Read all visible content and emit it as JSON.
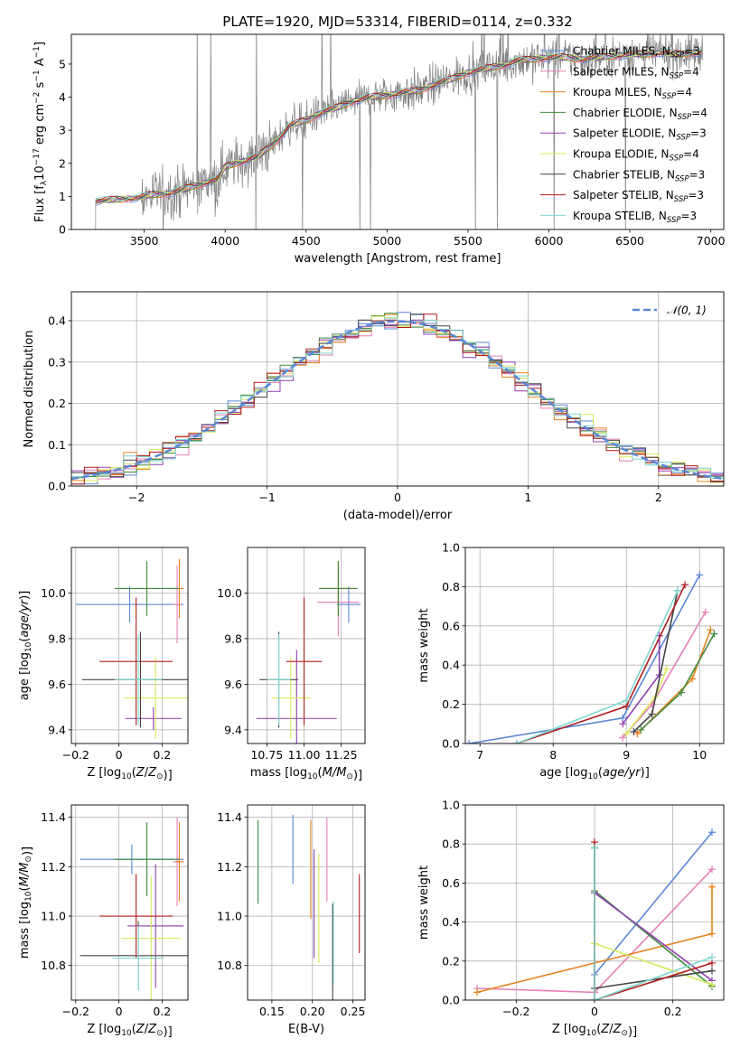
{
  "figure": {
    "title": "PLATE=1920, MJD=53314, FIBERID=0114, z=0.332"
  },
  "models": [
    {
      "label": "Chabrier MILES",
      "nssp": "3",
      "color": "#5b87d6"
    },
    {
      "label": "Salpeter MILES",
      "nssp": "4",
      "color": "#e67fb6"
    },
    {
      "label": "Kroupa MILES",
      "nssp": "4",
      "color": "#e8821e"
    },
    {
      "label": "Chabrier ELODIE",
      "nssp": "4",
      "color": "#3f8a3f"
    },
    {
      "label": "Salpeter ELODIE",
      "nssp": "3",
      "color": "#8e3fb0"
    },
    {
      "label": "Kroupa ELODIE",
      "nssp": "4",
      "color": "#d8e85a"
    },
    {
      "label": "Chabrier STELIB",
      "nssp": "3",
      "color": "#444444"
    },
    {
      "label": "Salpeter STELIB",
      "nssp": "3",
      "color": "#b01c1c"
    },
    {
      "label": "Kroupa STELIB",
      "nssp": "3",
      "color": "#7fd6d0"
    }
  ],
  "chart_data": [
    {
      "id": "spectrum",
      "type": "line",
      "xlabel": "wavelength [Angstrom, rest frame]",
      "ylabel": "Flux [f_λ 10^-17 erg cm^-2 s^-1 A^-1]",
      "xlim": [
        3050,
        7080
      ],
      "ylim": [
        0,
        5.9
      ],
      "xticks": [
        3500,
        4000,
        4500,
        5000,
        5500,
        6000,
        6500,
        7000
      ],
      "yticks": [
        0,
        1,
        2,
        3,
        4,
        5
      ],
      "grid": false,
      "legend_position": "top-right",
      "data_start_wavelength": 3200,
      "continuum_points": [
        [
          3200,
          0.85
        ],
        [
          3300,
          0.9
        ],
        [
          3450,
          0.95
        ],
        [
          3550,
          1.05
        ],
        [
          3650,
          1.1
        ],
        [
          3700,
          1.15
        ],
        [
          3800,
          1.3
        ],
        [
          3900,
          1.45
        ],
        [
          3950,
          1.5
        ],
        [
          4000,
          1.9
        ],
        [
          4100,
          2.05
        ],
        [
          4200,
          2.2
        ],
        [
          4300,
          2.6
        ],
        [
          4400,
          3.15
        ],
        [
          4500,
          3.3
        ],
        [
          4600,
          3.55
        ],
        [
          4700,
          3.7
        ],
        [
          4800,
          3.9
        ],
        [
          4900,
          4.0
        ],
        [
          5000,
          4.05
        ],
        [
          5100,
          4.15
        ],
        [
          5200,
          4.2
        ],
        [
          5300,
          4.4
        ],
        [
          5400,
          4.55
        ],
        [
          5500,
          4.75
        ],
        [
          5600,
          4.85
        ],
        [
          5700,
          4.95
        ],
        [
          5800,
          5.1
        ],
        [
          5900,
          5.15
        ],
        [
          6000,
          5.2
        ],
        [
          6100,
          5.2
        ],
        [
          6200,
          5.15
        ],
        [
          6300,
          5.2
        ],
        [
          6400,
          5.25
        ],
        [
          6500,
          5.3
        ],
        [
          6600,
          5.3
        ],
        [
          6700,
          5.35
        ],
        [
          6800,
          5.3
        ],
        [
          6900,
          5.35
        ]
      ]
    },
    {
      "id": "residual-histogram",
      "type": "bar",
      "xlabel": "(data-model)/error",
      "ylabel": "Normed distribution",
      "xlim": [
        -2.5,
        2.5
      ],
      "ylim": [
        0,
        0.47
      ],
      "xticks": [
        -2,
        -1,
        0,
        1,
        2
      ],
      "yticks": [
        0.0,
        0.1,
        0.2,
        0.3,
        0.4
      ],
      "grid": true,
      "legend": [
        "𝒩(0, 1)"
      ],
      "legend_position": "top-right",
      "normal_curve": {
        "mean": 0,
        "sigma": 1,
        "color": "#5b87d6"
      },
      "bin_width": 0.1,
      "bin_start": -2.5
    },
    {
      "id": "age-vs-Z",
      "type": "scatter",
      "xlabel": "Z [log10(Z/Z⊙)]",
      "ylabel": "age [log10(age/yr)]",
      "xlim": [
        -0.22,
        0.32
      ],
      "ylim": [
        9.34,
        10.2
      ],
      "xticks": [
        -0.2,
        0.0,
        0.2
      ],
      "yticks": [
        9.4,
        9.6,
        9.8,
        10.0
      ],
      "grid": true,
      "points": [
        {
          "model": 0,
          "x": 0.05,
          "y": 9.95,
          "xerr": 0.25,
          "yerr": 0.08
        },
        {
          "model": 1,
          "x": 0.27,
          "y": 9.95,
          "xerr": 0.02,
          "yerr": 0.17
        },
        {
          "model": 2,
          "x": 0.28,
          "y": 10.02,
          "xerr": 0.02,
          "yerr": 0.13
        },
        {
          "model": 3,
          "x": 0.13,
          "y": 10.02,
          "xerr": 0.15,
          "yerr": 0.12
        },
        {
          "model": 4,
          "x": 0.16,
          "y": 9.45,
          "xerr": 0.13,
          "yerr": 0.05
        },
        {
          "model": 5,
          "x": 0.17,
          "y": 9.54,
          "xerr": 0.15,
          "yerr": 0.18
        },
        {
          "model": 6,
          "x": 0.1,
          "y": 9.62,
          "xerr": 0.27,
          "yerr": 0.21
        },
        {
          "model": 7,
          "x": 0.08,
          "y": 9.7,
          "xerr": 0.17,
          "yerr": 0.28
        },
        {
          "model": 8,
          "x": 0.09,
          "y": 9.62,
          "xerr": 0.11,
          "yerr": 0.2
        }
      ]
    },
    {
      "id": "age-vs-mass",
      "type": "scatter",
      "xlabel": "mass [log10(M/M⊙)]",
      "ylabel": "",
      "xlim": [
        10.62,
        11.41
      ],
      "ylim": [
        9.34,
        10.2
      ],
      "xticks": [
        10.75,
        11.0,
        11.25
      ],
      "xtick_labels": [
        "10.75",
        "11.00",
        "11.25"
      ],
      "yticks": [
        9.4,
        9.6,
        9.8,
        10.0
      ],
      "grid": true,
      "points": [
        {
          "model": 0,
          "x": 11.3,
          "y": 9.95,
          "xerr": 0.08,
          "yerr": 0.08
        },
        {
          "model": 1,
          "x": 11.23,
          "y": 9.96,
          "xerr": 0.14,
          "yerr": 0.15
        },
        {
          "model": 2,
          "x": 11.23,
          "y": 10.02,
          "xerr": 0.12,
          "yerr": 0.12
        },
        {
          "model": 3,
          "x": 11.23,
          "y": 10.02,
          "xerr": 0.13,
          "yerr": 0.12
        },
        {
          "model": 4,
          "x": 10.95,
          "y": 9.45,
          "xerr": 0.27,
          "yerr": 0.3
        },
        {
          "model": 5,
          "x": 10.91,
          "y": 9.54,
          "xerr": 0.13,
          "yerr": 0.18
        },
        {
          "model": 6,
          "x": 10.83,
          "y": 9.62,
          "xerr": 0.13,
          "yerr": 0.21
        },
        {
          "model": 7,
          "x": 11.0,
          "y": 9.7,
          "xerr": 0.12,
          "yerr": 0.28
        },
        {
          "model": 8,
          "x": 10.83,
          "y": 9.62,
          "xerr": 0.08,
          "yerr": 0.2
        }
      ]
    },
    {
      "id": "mass-weight-vs-age",
      "type": "line",
      "xlabel": "age [log10(age/yr)]",
      "ylabel": "mass weight",
      "xlim": [
        6.8,
        10.33
      ],
      "ylim": [
        0,
        1.0
      ],
      "xticks": [
        7,
        8,
        9,
        10
      ],
      "yticks": [
        0.0,
        0.2,
        0.4,
        0.6,
        0.8,
        1.0
      ],
      "grid": true,
      "series": [
        {
          "model": 0,
          "points": [
            [
              6.85,
              0.0
            ],
            [
              8.95,
              0.13
            ],
            [
              10.0,
              0.86
            ]
          ]
        },
        {
          "model": 1,
          "points": [
            [
              8.95,
              0.03
            ],
            [
              9.35,
              0.2
            ],
            [
              10.08,
              0.67
            ]
          ]
        },
        {
          "model": 2,
          "points": [
            [
              9.15,
              0.05
            ],
            [
              9.9,
              0.33
            ],
            [
              10.15,
              0.58
            ]
          ]
        },
        {
          "model": 3,
          "points": [
            [
              9.2,
              0.07
            ],
            [
              9.75,
              0.26
            ],
            [
              10.2,
              0.56
            ]
          ]
        },
        {
          "model": 4,
          "points": [
            [
              8.95,
              0.1
            ],
            [
              9.45,
              0.35
            ],
            [
              9.45,
              0.55
            ]
          ]
        },
        {
          "model": 5,
          "points": [
            [
              9.0,
              0.05
            ],
            [
              9.4,
              0.24
            ],
            [
              9.55,
              0.38
            ]
          ]
        },
        {
          "model": 6,
          "points": [
            [
              9.1,
              0.06
            ],
            [
              9.35,
              0.15
            ],
            [
              9.7,
              0.78
            ]
          ]
        },
        {
          "model": 7,
          "points": [
            [
              7.5,
              0.0
            ],
            [
              9.0,
              0.19
            ],
            [
              9.8,
              0.81
            ]
          ]
        },
        {
          "model": 8,
          "points": [
            [
              7.5,
              0.0
            ],
            [
              9.0,
              0.22
            ],
            [
              9.7,
              0.78
            ]
          ]
        }
      ]
    },
    {
      "id": "mass-vs-Z",
      "type": "scatter",
      "xlabel": "Z [log10(Z/Z⊙)]",
      "ylabel": "mass [log10(M/M⊙)]",
      "xlim": [
        -0.22,
        0.32
      ],
      "ylim": [
        10.66,
        11.45
      ],
      "xticks": [
        -0.2,
        0.0,
        0.2
      ],
      "yticks": [
        10.8,
        11.0,
        11.2,
        11.4
      ],
      "grid": true,
      "points": [
        {
          "model": 0,
          "x": 0.06,
          "y": 11.23,
          "xerr": 0.24,
          "yerr": 0.06
        },
        {
          "model": 1,
          "x": 0.27,
          "y": 11.22,
          "xerr": 0.02,
          "yerr": 0.18
        },
        {
          "model": 2,
          "x": 0.28,
          "y": 11.22,
          "xerr": 0.02,
          "yerr": 0.16
        },
        {
          "model": 3,
          "x": 0.13,
          "y": 11.23,
          "xerr": 0.15,
          "yerr": 0.15
        },
        {
          "model": 4,
          "x": 0.17,
          "y": 10.96,
          "xerr": 0.13,
          "yerr": 0.25
        },
        {
          "model": 5,
          "x": 0.15,
          "y": 10.91,
          "xerr": 0.14,
          "yerr": 0.25
        },
        {
          "model": 6,
          "x": 0.09,
          "y": 10.84,
          "xerr": 0.27,
          "yerr": 0.14
        },
        {
          "model": 7,
          "x": 0.08,
          "y": 11.0,
          "xerr": 0.17,
          "yerr": 0.17
        },
        {
          "model": 8,
          "x": 0.09,
          "y": 10.83,
          "xerr": 0.12,
          "yerr": 0.13
        }
      ]
    },
    {
      "id": "mass-vs-EBV",
      "type": "scatter",
      "xlabel": "E(B-V)",
      "ylabel": "",
      "xlim": [
        0.12,
        0.265
      ],
      "ylim": [
        10.66,
        11.45
      ],
      "xticks": [
        0.15,
        0.2,
        0.25
      ],
      "xtick_labels": [
        "0.15",
        "0.20",
        "0.25"
      ],
      "yticks": [
        10.8,
        11.0,
        11.2,
        11.4
      ],
      "grid": true,
      "points": [
        {
          "model": 0,
          "x": 0.176,
          "y": 11.27,
          "yerr": 0.14
        },
        {
          "model": 1,
          "x": 0.218,
          "y": 11.23,
          "yerr": 0.17
        },
        {
          "model": 2,
          "x": 0.198,
          "y": 11.19,
          "yerr": 0.2
        },
        {
          "model": 3,
          "x": 0.133,
          "y": 11.22,
          "yerr": 0.17
        },
        {
          "model": 4,
          "x": 0.202,
          "y": 11.05,
          "yerr": 0.22
        },
        {
          "model": 5,
          "x": 0.208,
          "y": 11.03,
          "yerr": 0.22
        },
        {
          "model": 6,
          "x": 0.225,
          "y": 10.85,
          "yerr": 0.2
        },
        {
          "model": 7,
          "x": 0.258,
          "y": 11.01,
          "yerr": 0.16
        },
        {
          "model": 8,
          "x": 0.226,
          "y": 10.89,
          "yerr": 0.17
        }
      ]
    },
    {
      "id": "mass-weight-vs-Z",
      "type": "line",
      "xlabel": "Z [log10(Z/Z⊙)]",
      "ylabel": "mass weight",
      "xlim": [
        -0.33,
        0.33
      ],
      "ylim": [
        0,
        1.0
      ],
      "xticks": [
        -0.2,
        0.0,
        0.2
      ],
      "yticks": [
        0.0,
        0.2,
        0.4,
        0.6,
        0.8,
        1.0
      ],
      "grid": true,
      "series": [
        {
          "model": 0,
          "points": [
            [
              0.0,
              0.0
            ],
            [
              0.0,
              0.13
            ],
            [
              0.3,
              0.86
            ]
          ]
        },
        {
          "model": 1,
          "points": [
            [
              -0.3,
              0.06
            ],
            [
              0.0,
              0.04
            ],
            [
              0.3,
              0.67
            ]
          ]
        },
        {
          "model": 2,
          "points": [
            [
              -0.3,
              0.04
            ],
            [
              0.3,
              0.34
            ],
            [
              0.3,
              0.58
            ]
          ]
        },
        {
          "model": 3,
          "points": [
            [
              0.0,
              0.78
            ],
            [
              0.0,
              0.56
            ],
            [
              0.3,
              0.07
            ]
          ]
        },
        {
          "model": 4,
          "points": [
            [
              0.0,
              0.55
            ],
            [
              0.3,
              0.1
            ]
          ]
        },
        {
          "model": 5,
          "points": [
            [
              0.0,
              0.29
            ],
            [
              0.3,
              0.08
            ]
          ]
        },
        {
          "model": 6,
          "points": [
            [
              0.0,
              0.78
            ],
            [
              0.0,
              0.06
            ],
            [
              0.3,
              0.15
            ]
          ]
        },
        {
          "model": 7,
          "points": [
            [
              0.0,
              0.81
            ],
            [
              0.0,
              0.0
            ],
            [
              0.3,
              0.19
            ]
          ]
        },
        {
          "model": 8,
          "points": [
            [
              0.0,
              0.78
            ],
            [
              0.0,
              0.0
            ],
            [
              0.3,
              0.22
            ]
          ]
        }
      ]
    }
  ]
}
